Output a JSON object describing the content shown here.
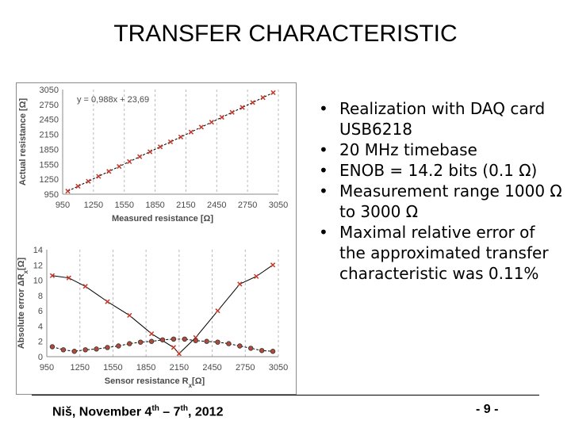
{
  "slide": {
    "title": "TRANSFER CHARACTERISTIC",
    "bullets": [
      "Realization with DAQ card USB6218",
      "20 MHz timebase",
      "ENOB = 14.2 bits (0.1 Ω)",
      "Measurement range 1000 Ω to 3000 Ω",
      "Maximal relative error of the approximated transfer characteristic was 0.11%"
    ],
    "bullet_symbol": "•",
    "footer": {
      "place": "Niš, November 4",
      "start_sup": "th",
      "dash": " – 7",
      "end_sup": "th",
      "year": ", 2012"
    },
    "page_number": "- 9 -"
  },
  "colors": {
    "marker": "#c0392b",
    "line": "#000000",
    "grid": "#b8b8b8",
    "axis_text": "#4a4a4a"
  },
  "chart_data": [
    {
      "type": "scatter",
      "title": "",
      "equation": "y = 0,988x + 23,69",
      "xlabel": "Measured resistance [Ω]",
      "ylabel": "Actual resistance [Ω]",
      "xlim": [
        950,
        3050
      ],
      "ylim": [
        950,
        3050
      ],
      "xticks": [
        950,
        1250,
        1550,
        1850,
        2150,
        2450,
        2750,
        3050
      ],
      "yticks": [
        950,
        1250,
        1550,
        1850,
        2150,
        2450,
        2750,
        3050
      ],
      "grid": "vertical-dashed",
      "series": [
        {
          "marker": "x",
          "line": "dashed",
          "x": [
            1000,
            1100,
            1200,
            1300,
            1400,
            1500,
            1600,
            1700,
            1800,
            1900,
            2000,
            2100,
            2200,
            2300,
            2400,
            2500,
            2600,
            2700,
            2800,
            2900,
            3000
          ],
          "y": [
            1011,
            1110,
            1209,
            1308,
            1407,
            1506,
            1604,
            1703,
            1802,
            1901,
            2000,
            2098,
            2197,
            2296,
            2395,
            2494,
            2592,
            2691,
            2790,
            2889,
            2988
          ]
        }
      ]
    },
    {
      "type": "line",
      "title": "",
      "xlabel": "Sensor resistance R",
      "xlabel_sub": "x",
      "xlabel_unit": "[Ω]",
      "ylabel": "Absolute error ΔR",
      "ylabel_sub": "x",
      "ylabel_unit": "[Ω]",
      "xlim": [
        950,
        3050
      ],
      "ylim": [
        0,
        14
      ],
      "xticks": [
        950,
        1250,
        1550,
        1850,
        2150,
        2450,
        2750,
        3050
      ],
      "yticks": [
        0,
        2,
        4,
        6,
        8,
        10,
        12,
        14
      ],
      "grid": "vertical-dashed",
      "series": [
        {
          "marker": "x",
          "line": "solid",
          "x": [
            1000,
            1150,
            1300,
            1500,
            1700,
            1900,
            2100,
            2150,
            2300,
            2500,
            2700,
            2850,
            3000
          ],
          "y": [
            10.6,
            10.3,
            9.2,
            7.2,
            5.4,
            3.0,
            1.2,
            0.4,
            2.5,
            6.0,
            9.5,
            10.5,
            12.0
          ]
        },
        {
          "marker": "circle",
          "line": "dashed",
          "x": [
            1000,
            1100,
            1200,
            1300,
            1400,
            1500,
            1600,
            1700,
            1800,
            1900,
            2000,
            2100,
            2200,
            2300,
            2400,
            2500,
            2600,
            2700,
            2800,
            2900,
            3000
          ],
          "y": [
            1.3,
            0.9,
            0.7,
            0.9,
            1.0,
            1.2,
            1.4,
            1.7,
            1.9,
            2.0,
            2.2,
            2.3,
            2.3,
            2.1,
            2.0,
            1.9,
            1.7,
            1.4,
            1.1,
            0.8,
            0.7
          ]
        }
      ]
    }
  ]
}
